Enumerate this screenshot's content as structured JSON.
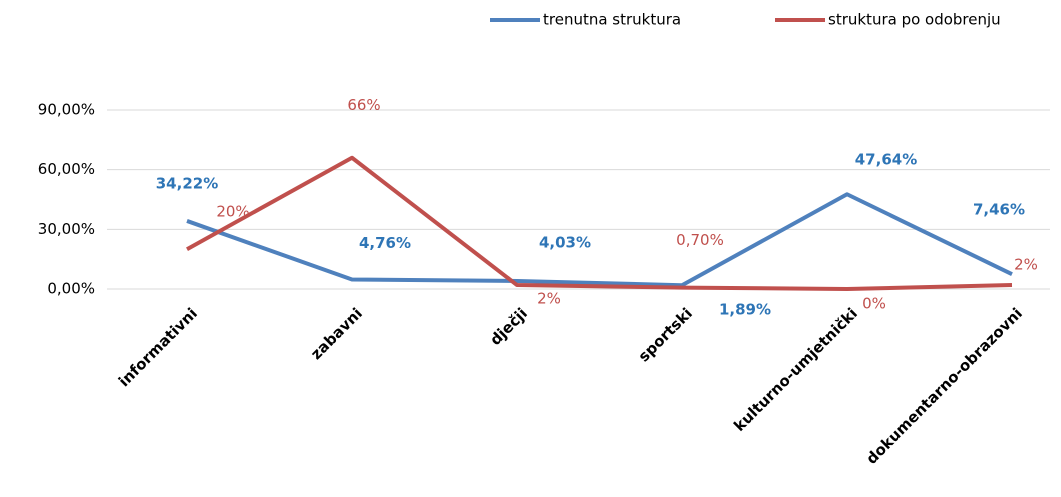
{
  "chart_data": {
    "type": "line",
    "categories": [
      "informativni",
      "zabavni",
      "dječji",
      "sportski",
      "kulturno-umjetnički",
      "dokumentarno-obrazovni"
    ],
    "series": [
      {
        "name": "trenutna struktura",
        "color": "#4f81bd",
        "values": [
          34.22,
          4.76,
          4.03,
          1.89,
          47.64,
          7.46
        ],
        "value_labels": [
          "34,22%",
          "4,76%",
          "4,03%",
          "1,89%",
          "47,64%",
          "7,46%"
        ]
      },
      {
        "name": "struktura po odobrenju",
        "color": "#c0504d",
        "values": [
          20,
          66,
          2,
          0.7,
          0,
          2
        ],
        "value_labels": [
          "20%",
          "66%",
          "2%",
          "0,70%",
          "0%",
          "2%"
        ]
      }
    ],
    "ylim": [
      0,
      90
    ],
    "yticks": [
      {
        "value": 0,
        "label": "0,00%"
      },
      {
        "value": 30,
        "label": "30,00%"
      },
      {
        "value": 60,
        "label": "60,00%"
      },
      {
        "value": 90,
        "label": "90,00%"
      }
    ],
    "grid": true,
    "legend": "top-right"
  }
}
